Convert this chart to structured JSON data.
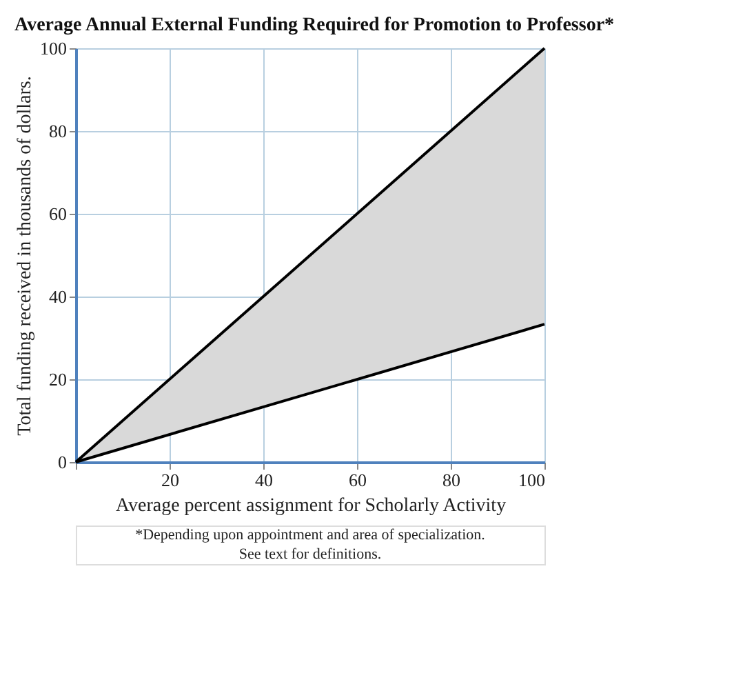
{
  "chart_data": {
    "type": "line",
    "title": "Average Annual External Funding Required for Promotion to Professor*",
    "xlabel": "Average percent assignment for Scholarly Activity",
    "ylabel": "Total funding received in thousands of dollars.",
    "x": [
      0,
      100
    ],
    "series": [
      {
        "color": "#000000",
        "values": [
          0,
          100
        ],
        "lower": [
          0,
          33.3
        ],
        "upper": [
          0,
          100
        ]
      },
      {
        "color": "#000000",
        "values": [
          0,
          33.3
        ]
      }
    ],
    "xlim": [
      0,
      100
    ],
    "xticks": [
      {
        "value": 0,
        "label": null
      },
      20,
      40,
      60,
      80,
      100
    ],
    "ylim": [
      0,
      100
    ],
    "yticks": [
      0,
      20,
      40,
      60,
      80,
      100
    ],
    "grid": true,
    "marker": "none",
    "line_style": "solid",
    "annotations": [
      "*Depending upon appointment and area of specialization.",
      "See text for definitions."
    ]
  }
}
